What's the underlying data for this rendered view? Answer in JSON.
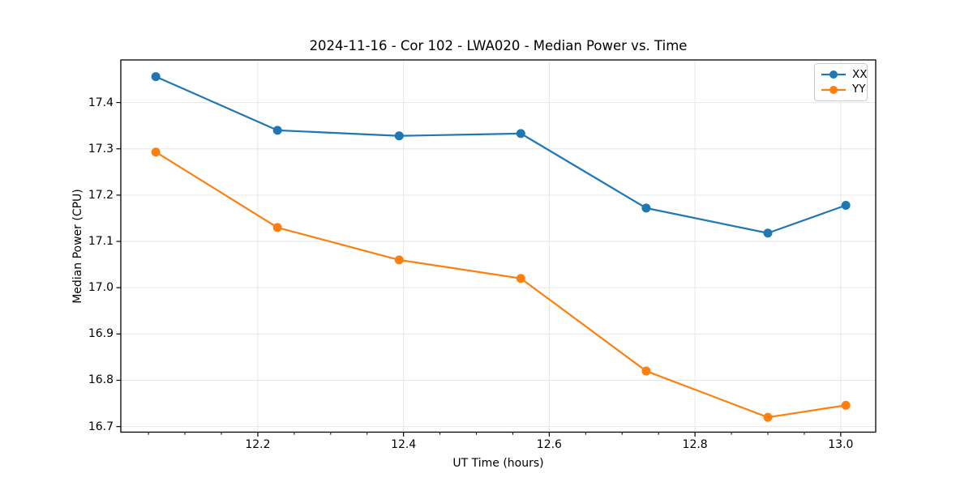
{
  "chart_data": {
    "type": "line",
    "title": "2024-11-16 - Cor 102 - LWA020 - Median Power vs. Time",
    "xlabel": "UT Time (hours)",
    "ylabel": "Median Power (CPU)",
    "x": [
      12.06,
      12.227,
      12.394,
      12.561,
      12.733,
      12.9,
      13.007
    ],
    "series": [
      {
        "name": "XX",
        "color": "#1f77b4",
        "values": [
          17.456,
          17.34,
          17.328,
          17.333,
          17.172,
          17.118,
          17.178
        ]
      },
      {
        "name": "YY",
        "color": "#ff7f0e",
        "values": [
          17.293,
          17.13,
          17.06,
          17.02,
          16.82,
          16.72,
          16.746
        ]
      }
    ],
    "xlim": [
      12.012,
      13.048
    ],
    "ylim": [
      16.688,
      17.492
    ],
    "x_ticks": [
      12.2,
      12.4,
      12.6,
      12.8,
      13.0
    ],
    "x_tick_labels": [
      "12.2",
      "12.4",
      "12.6",
      "12.8",
      "13.0"
    ],
    "x_minor_step": 0.05,
    "y_ticks": [
      16.7,
      16.8,
      16.9,
      17.0,
      17.1,
      17.2,
      17.3,
      17.4
    ],
    "y_tick_labels": [
      "16.7",
      "16.8",
      "16.9",
      "17.0",
      "17.1",
      "17.2",
      "17.3",
      "17.4"
    ],
    "grid": true,
    "legend_position": "top-right",
    "marker": "circle",
    "grid_color": "#e6e6e6",
    "spine_color": "#000000",
    "background_color": "#ffffff"
  }
}
